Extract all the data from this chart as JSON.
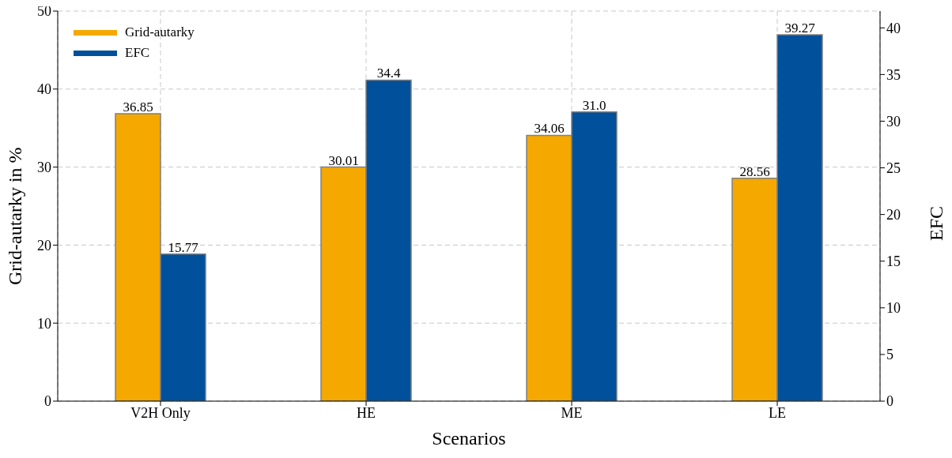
{
  "chart_data": {
    "type": "bar",
    "categories": [
      "V2H Only",
      "HE",
      "ME",
      "LE"
    ],
    "series": [
      {
        "name": "Grid-autarky",
        "color": "#f5a800",
        "values": [
          36.85,
          30.01,
          34.06,
          28.56
        ],
        "value_labels": [
          "36.85",
          "30.01",
          "34.06",
          "28.56"
        ]
      },
      {
        "name": "EFC",
        "color": "#00509b",
        "axis": "y2",
        "values": [
          15.77,
          34.4,
          31.0,
          39.27
        ],
        "value_labels": [
          "15.77",
          "34.4",
          "31.0",
          "39.27"
        ]
      }
    ],
    "xlabel": "Scenarios",
    "ylabel": "Grid-autarky in %",
    "y2label": "EFC",
    "ylim": [
      0,
      50
    ],
    "yticks": [
      0,
      10,
      20,
      30,
      40,
      50
    ],
    "y2lim": [
      0,
      41.8
    ],
    "y2ticks": [
      0,
      5,
      10,
      15,
      20,
      25,
      30,
      35,
      40
    ],
    "grid": true,
    "legend": "top left"
  }
}
